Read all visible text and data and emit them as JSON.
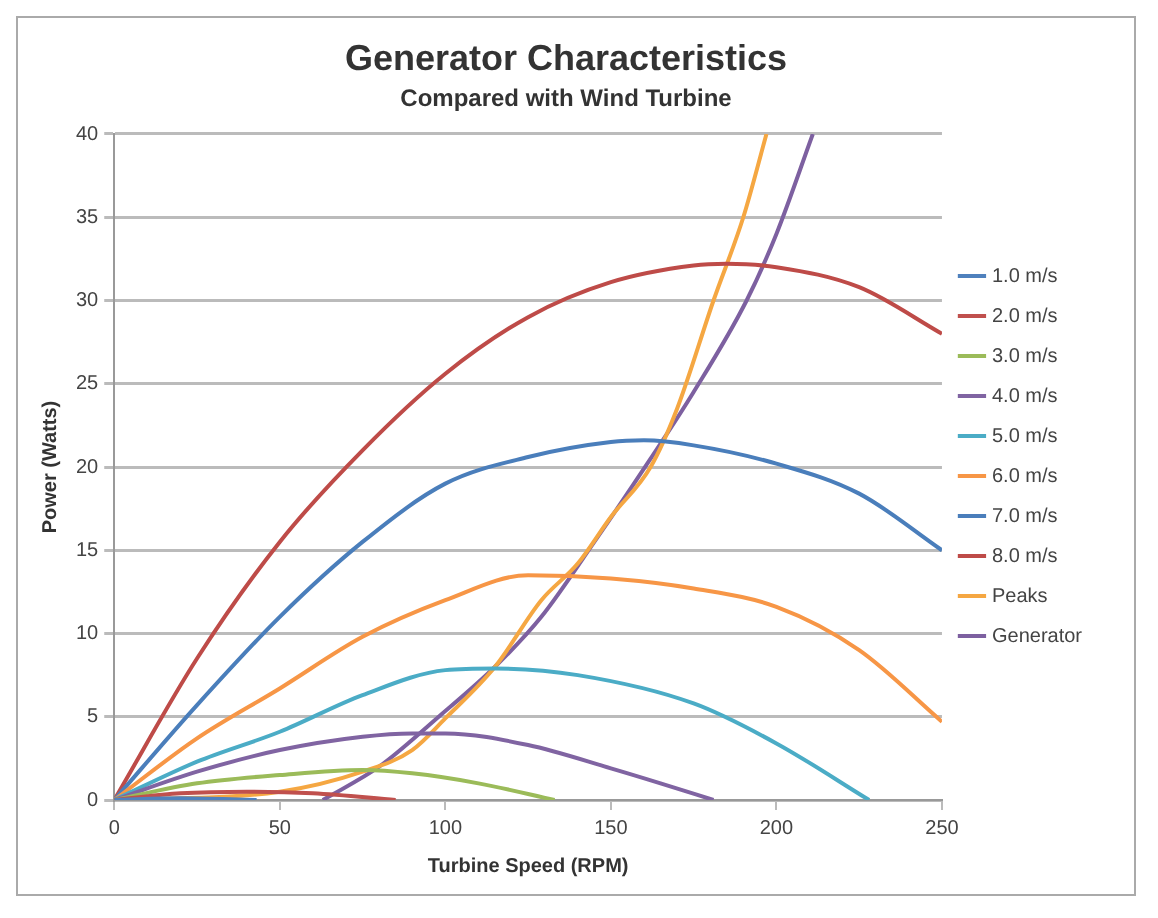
{
  "chart_data": {
    "type": "line",
    "title": "Generator Characteristics",
    "subtitle": "Compared with Wind Turbine",
    "xlabel": "Turbine Speed (RPM)",
    "ylabel": "Power (Watts)",
    "xlim": [
      0,
      250
    ],
    "xticks": [
      0,
      50,
      100,
      150,
      200,
      250
    ],
    "ylim": [
      0,
      40
    ],
    "yticks": [
      0,
      5,
      10,
      15,
      20,
      25,
      30,
      35,
      40
    ],
    "grid": "y",
    "legend": "right",
    "marker": "none",
    "line_style": "solid",
    "series": [
      {
        "name": "1.0 m/s",
        "color": "#4f81bd",
        "x": [
          0,
          20,
          43
        ],
        "values": [
          0,
          0.1,
          0
        ]
      },
      {
        "name": "2.0 m/s",
        "color": "#c0504d",
        "x": [
          0,
          20,
          40,
          60,
          85
        ],
        "values": [
          0,
          0.4,
          0.5,
          0.4,
          0
        ]
      },
      {
        "name": "3.0 m/s",
        "color": "#9bbb59",
        "x": [
          0,
          25,
          50,
          75,
          90,
          110,
          133
        ],
        "values": [
          0,
          1,
          1.5,
          1.8,
          1.6,
          1,
          0
        ]
      },
      {
        "name": "4.0 m/s",
        "color": "#8064a2",
        "x": [
          0,
          25,
          50,
          75,
          90,
          100,
          125,
          150,
          165,
          181
        ],
        "values": [
          0,
          1.7,
          3,
          3.8,
          4,
          4,
          3.3,
          1.9,
          1,
          0
        ]
      },
      {
        "name": "5.0 m/s",
        "color": "#4bacc6",
        "x": [
          0,
          25,
          50,
          75,
          100,
          115,
          140,
          175,
          200,
          228
        ],
        "values": [
          0,
          2.3,
          4.1,
          6.3,
          7.8,
          7.9,
          7.5,
          5.8,
          3.4,
          0
        ]
      },
      {
        "name": "6.0 m/s",
        "color": "#f79646",
        "x": [
          0,
          25,
          50,
          75,
          100,
          125,
          150,
          175,
          200,
          225,
          250
        ],
        "values": [
          0,
          3.7,
          6.7,
          9.8,
          12,
          13.5,
          13.3,
          12.7,
          11.6,
          9,
          4.7
        ]
      },
      {
        "name": "7.0 m/s",
        "color": "#4a7ebb",
        "x": [
          0,
          25,
          50,
          75,
          100,
          125,
          150,
          160,
          175,
          200,
          225,
          250
        ],
        "values": [
          0,
          5.7,
          11,
          15.5,
          19,
          20.6,
          21.5,
          21.6,
          21.3,
          20.2,
          18.4,
          15
        ]
      },
      {
        "name": "8.0 m/s",
        "color": "#be4b48",
        "x": [
          0,
          25,
          50,
          75,
          100,
          125,
          150,
          175,
          185,
          200,
          225,
          250
        ],
        "values": [
          0,
          8.5,
          15.5,
          21,
          25.6,
          29,
          31.1,
          32.1,
          32.2,
          32,
          30.8,
          28
        ]
      },
      {
        "name": "Peaks",
        "color": "#f5a742",
        "x": [
          0,
          50,
          75,
          90,
          100,
          115,
          129,
          140,
          150,
          162,
          170,
          181,
          190,
          197
        ],
        "values": [
          0,
          0.5,
          1.7,
          3,
          4.9,
          8,
          12,
          14.2,
          17,
          20,
          23.5,
          30,
          35,
          40
        ]
      },
      {
        "name": "Generator",
        "color": "#7d60a0",
        "x": [
          63,
          80,
          98,
          115,
          129,
          145,
          162,
          175,
          191,
          200,
          211
        ],
        "values": [
          0,
          2,
          5,
          8,
          11,
          15.5,
          20.5,
          24.5,
          30,
          34,
          40
        ]
      }
    ]
  }
}
